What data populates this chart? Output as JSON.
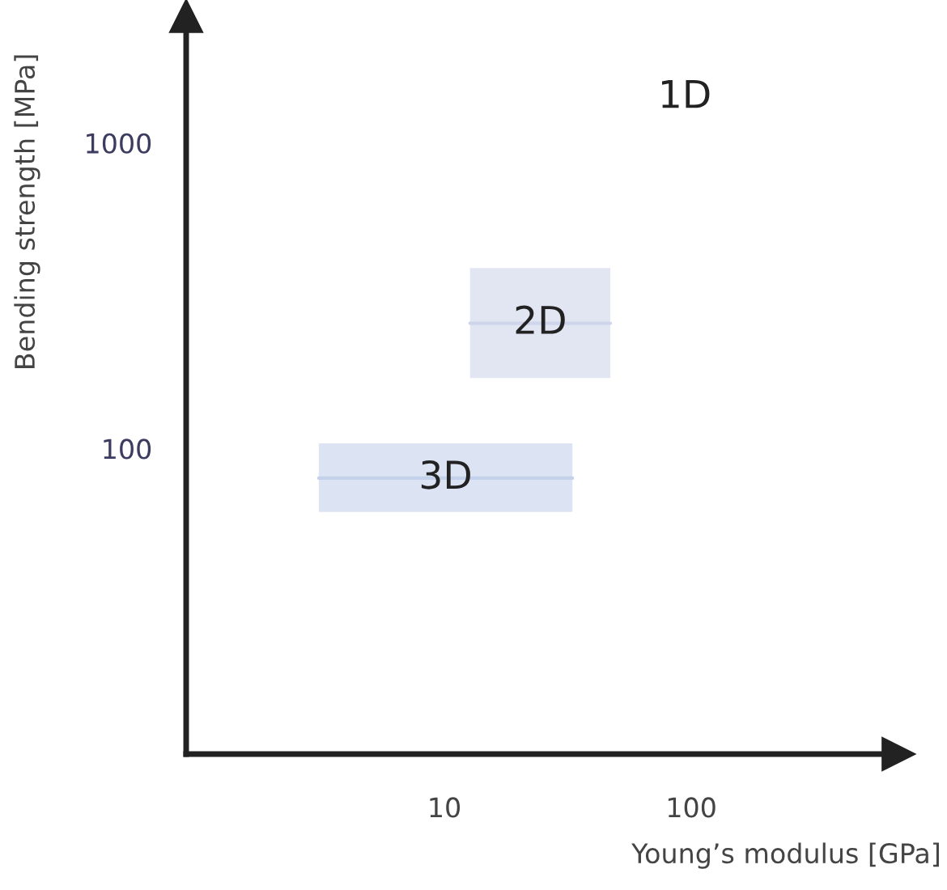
{
  "chart_data": {
    "type": "line",
    "xlabel": "Young’s modulus [GPa]",
    "ylabel": "Bending strength [MPa]",
    "log": "xy",
    "xlim": [
      0.9,
      690
    ],
    "ylim": [
      10,
      2600
    ],
    "xticks": [
      10,
      100
    ],
    "yticks": [
      100,
      1000
    ],
    "grid": false,
    "legend": false,
    "marker": "none",
    "series": [
      {
        "name": "3D",
        "color": "#c4d1eb",
        "x": [
          3.1,
          33
        ],
        "values": [
          80,
          80
        ],
        "lower": [
          62,
          62
        ],
        "upper": [
          104,
          104
        ]
      },
      {
        "name": "2D",
        "color": "#cfd6eb",
        "x": [
          12.7,
          47
        ],
        "values": [
          257,
          257
        ],
        "lower": [
          170,
          170
        ],
        "upper": [
          390,
          390
        ]
      }
    ],
    "annotations": [
      "1D"
    ]
  }
}
